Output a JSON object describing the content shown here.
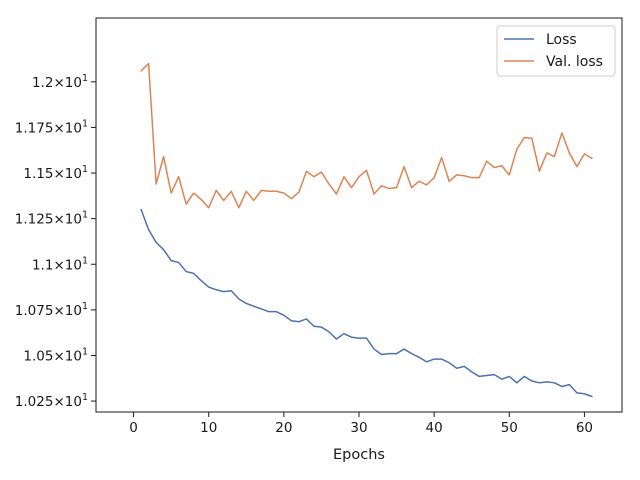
{
  "chart_data": {
    "type": "line",
    "xlabel": "Epochs",
    "ylabel": "",
    "xlim": [
      -5,
      65
    ],
    "ylim": [
      10.19,
      12.35
    ],
    "grid": false,
    "legend_placement": "top-right",
    "x_ticks": [
      {
        "value": 0,
        "label": "0"
      },
      {
        "value": 10,
        "label": "10"
      },
      {
        "value": 20,
        "label": "20"
      },
      {
        "value": 30,
        "label": "30"
      },
      {
        "value": 40,
        "label": "40"
      },
      {
        "value": 50,
        "label": "50"
      },
      {
        "value": 60,
        "label": "60"
      }
    ],
    "y_ticks": [
      {
        "value": 10.25,
        "mantissa": "1.025",
        "exponent": "1"
      },
      {
        "value": 10.5,
        "mantissa": "1.05",
        "exponent": "1"
      },
      {
        "value": 10.75,
        "mantissa": "1.075",
        "exponent": "1"
      },
      {
        "value": 11.0,
        "mantissa": "1.1",
        "exponent": "1"
      },
      {
        "value": 11.25,
        "mantissa": "1.125",
        "exponent": "1"
      },
      {
        "value": 11.5,
        "mantissa": "1.15",
        "exponent": "1"
      },
      {
        "value": 11.75,
        "mantissa": "1.175",
        "exponent": "1"
      },
      {
        "value": 12.0,
        "mantissa": "1.2",
        "exponent": "1"
      }
    ],
    "x": [
      1,
      2,
      3,
      4,
      5,
      6,
      7,
      8,
      9,
      10,
      11,
      12,
      13,
      14,
      15,
      16,
      17,
      18,
      19,
      20,
      21,
      22,
      23,
      24,
      25,
      26,
      27,
      28,
      29,
      30,
      31,
      32,
      33,
      34,
      35,
      36,
      37,
      38,
      39,
      40,
      41,
      42,
      43,
      44,
      45,
      46,
      47,
      48,
      49,
      50,
      51,
      52,
      53,
      54,
      55,
      56,
      57,
      58,
      59,
      60,
      61
    ],
    "series": [
      {
        "name": "Loss",
        "color": "#4c72b0",
        "values": [
          11.3,
          11.19,
          11.12,
          11.08,
          11.02,
          11.01,
          10.96,
          10.95,
          10.91,
          10.875,
          10.86,
          10.85,
          10.855,
          10.81,
          10.785,
          10.77,
          10.755,
          10.74,
          10.74,
          10.72,
          10.69,
          10.685,
          10.7,
          10.66,
          10.655,
          10.63,
          10.59,
          10.62,
          10.6,
          10.595,
          10.595,
          10.535,
          10.505,
          10.51,
          10.51,
          10.535,
          10.51,
          10.49,
          10.465,
          10.48,
          10.48,
          10.46,
          10.43,
          10.44,
          10.41,
          10.385,
          10.39,
          10.395,
          10.37,
          10.385,
          10.35,
          10.385,
          10.36,
          10.35,
          10.355,
          10.35,
          10.33,
          10.34,
          10.295,
          10.29,
          10.275
        ]
      },
      {
        "name": "Val. loss",
        "color": "#dd8452",
        "values": [
          12.06,
          12.1,
          11.44,
          11.59,
          11.39,
          11.48,
          11.33,
          11.39,
          11.355,
          11.31,
          11.405,
          11.35,
          11.4,
          11.31,
          11.4,
          11.35,
          11.405,
          11.4,
          11.4,
          11.39,
          11.36,
          11.395,
          11.51,
          11.48,
          11.505,
          11.44,
          11.385,
          11.48,
          11.42,
          11.48,
          11.515,
          11.385,
          11.43,
          11.415,
          11.42,
          11.535,
          11.42,
          11.455,
          11.435,
          11.475,
          11.585,
          11.455,
          11.49,
          11.485,
          11.475,
          11.475,
          11.565,
          11.53,
          11.54,
          11.49,
          11.63,
          11.695,
          11.69,
          11.51,
          11.61,
          11.59,
          11.72,
          11.61,
          11.535,
          11.605,
          11.58
        ]
      }
    ]
  }
}
